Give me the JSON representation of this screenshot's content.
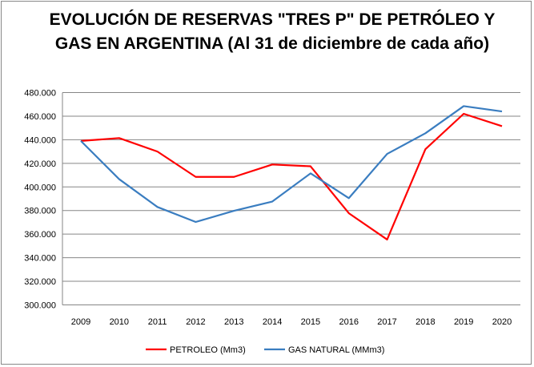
{
  "chart_data": {
    "type": "line",
    "title": "EVOLUCIÓN DE RESERVAS \"TRES P\" DE PETRÓLEO Y GAS EN ARGENTINA (Al 31 de diciembre de cada año)",
    "xlabel": "",
    "ylabel": "",
    "categories": [
      "2009",
      "2010",
      "2011",
      "2012",
      "2013",
      "2014",
      "2015",
      "2016",
      "2017",
      "2018",
      "2019",
      "2020"
    ],
    "ylim": [
      300000,
      480000
    ],
    "yticks": [
      300000,
      320000,
      340000,
      360000,
      380000,
      400000,
      420000,
      440000,
      460000,
      480000
    ],
    "ytick_labels": [
      "300.000",
      "320.000",
      "340.000",
      "360.000",
      "380.000",
      "400.000",
      "420.000",
      "440.000",
      "460.000",
      "480.000"
    ],
    "grid": true,
    "legend_position": "bottom",
    "series": [
      {
        "name": "PETROLEO (Mm3)",
        "color": "#ff0000",
        "values": [
          439000,
          441400,
          430000,
          408500,
          408500,
          419000,
          417500,
          377700,
          355400,
          432000,
          462000,
          451500
        ]
      },
      {
        "name": "GAS NATURAL (MMm3)",
        "color": "#3a7dc0",
        "values": [
          439000,
          406600,
          383000,
          370300,
          379800,
          387600,
          411500,
          390500,
          428000,
          445500,
          468500,
          464000
        ]
      }
    ]
  }
}
